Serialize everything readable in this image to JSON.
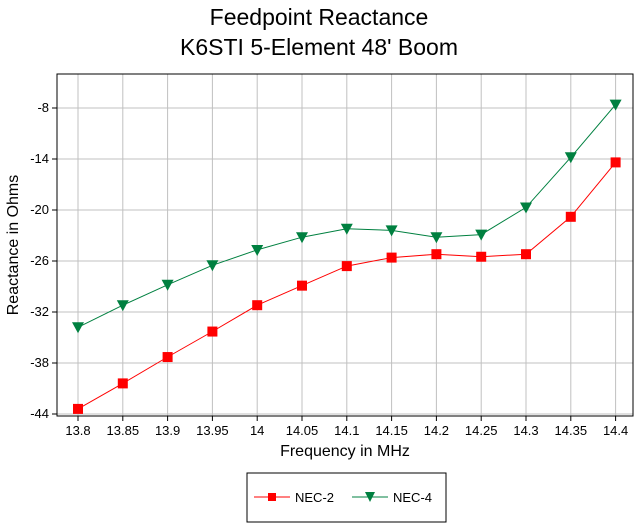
{
  "chart_data": {
    "type": "line",
    "title": "Feedpoint Reactance",
    "subtitle": "K6STI 5-Element 48' Boom",
    "xlabel": "Frequency in MHz",
    "ylabel": "Reactance in Ohms",
    "x": [
      "13.8",
      "13.85",
      "13.9",
      "13.95",
      "14",
      "14.05",
      "14.1",
      "14.15",
      "14.2",
      "14.25",
      "14.3",
      "14.35",
      "14.4"
    ],
    "yticks": [
      "-8",
      "-14",
      "-20",
      "-26",
      "-32",
      "-38",
      "-44"
    ],
    "ylim": [
      -44,
      -5
    ],
    "grid": true,
    "legend_position": "bottom",
    "series": [
      {
        "name": "NEC-2",
        "color": "#ff0000",
        "marker": "square",
        "values": [
          -43.4,
          -40.4,
          -37.3,
          -34.3,
          -31.2,
          -28.9,
          -26.6,
          -25.6,
          -25.2,
          -25.5,
          -25.2,
          -20.8,
          -14.4
        ]
      },
      {
        "name": "NEC-4",
        "color": "#008040",
        "marker": "triangle-down",
        "values": [
          -33.8,
          -31.2,
          -28.8,
          -26.5,
          -24.7,
          -23.2,
          -22.2,
          -22.4,
          -23.2,
          -22.9,
          -19.7,
          -13.8,
          -7.6
        ]
      }
    ]
  }
}
